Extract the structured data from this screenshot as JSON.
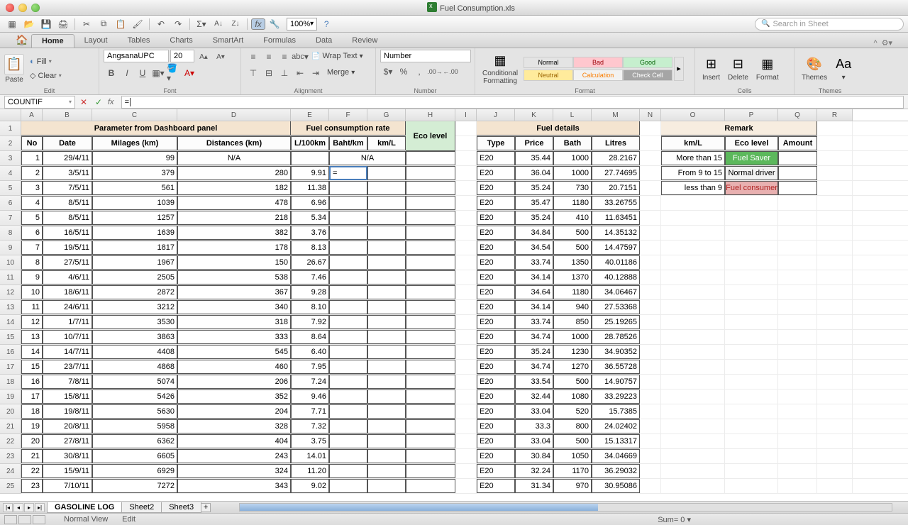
{
  "window": {
    "title": "Fuel Consumption.xls"
  },
  "toolbar": {
    "zoom": "100%",
    "search_placeholder": "Search in Sheet"
  },
  "ribbon": {
    "tabs": [
      "Home",
      "Layout",
      "Tables",
      "Charts",
      "SmartArt",
      "Formulas",
      "Data",
      "Review"
    ],
    "active_tab": "Home",
    "groups": {
      "edit": "Edit",
      "font": "Font",
      "alignment": "Alignment",
      "number": "Number",
      "format": "Format",
      "cells": "Cells",
      "themes": "Themes"
    },
    "paste_label": "Paste",
    "fill_label": "Fill",
    "clear_label": "Clear",
    "font_name": "AngsanaUPC",
    "font_size": "20",
    "wrap_label": "Wrap Text",
    "merge_label": "Merge",
    "number_format": "Number",
    "abc_label": "abc",
    "cond_format_label": "Conditional\nFormatting",
    "styles": {
      "normal": "Normal",
      "bad": "Bad",
      "good": "Good",
      "neutral": "Neutral",
      "calculation": "Calculation",
      "check": "Check Cell"
    },
    "insert_label": "Insert",
    "delete_label": "Delete",
    "format_label": "Format",
    "themes_label": "Themes",
    "aa_label": "Aa"
  },
  "formula_bar": {
    "name_box": "COUNTIF",
    "formula": "="
  },
  "columns": {
    "letters": [
      "A",
      "B",
      "C",
      "D",
      "E",
      "F",
      "G",
      "H",
      "I",
      "J",
      "K",
      "L",
      "M",
      "N",
      "O",
      "P",
      "Q",
      "R"
    ],
    "widths": [
      30,
      70,
      120,
      160,
      54,
      54,
      54,
      70,
      30,
      54,
      54,
      54,
      68,
      30,
      90,
      75,
      55,
      50
    ]
  },
  "headers": {
    "param": "Parameter from Dashboard panel",
    "fuel_rate": "Fuel consumption rate",
    "eco_level": "Eco level",
    "fuel_details": "Fuel details",
    "remark": "Remark",
    "sub": {
      "no": "No",
      "date": "Date",
      "milages": "Milages (km)",
      "distances": "Distances (km)",
      "l100": "L/100km",
      "baht": "Baht/km",
      "kml": "km/L",
      "type": "Type",
      "price": "Price",
      "bath": "Bath",
      "litres": "Litres",
      "r_kml": "km/L",
      "r_eco": "Eco level",
      "r_amt": "Amount"
    }
  },
  "remark_rows": [
    {
      "kml": "More than 15",
      "eco": "Fuel Saver",
      "cls": "fuel-saver"
    },
    {
      "kml": "From 9 to 15",
      "eco": "Normal driver",
      "cls": "normal-driver"
    },
    {
      "kml": "less than 9",
      "eco": "Fuel consumer",
      "cls": "fuel-consumer"
    }
  ],
  "rows": [
    {
      "no": 1,
      "date": "29/4/11",
      "mil": 99,
      "dist": "N/A",
      "l100": "",
      "na": "N/A",
      "type": "E20",
      "price": "35.44",
      "bath": "1000",
      "lit": "28.2167"
    },
    {
      "no": 2,
      "date": "3/5/11",
      "mil": 379,
      "dist": 280,
      "l100": "9.91",
      "edit": "=",
      "type": "E20",
      "price": "36.04",
      "bath": "1000",
      "lit": "27.74695"
    },
    {
      "no": 3,
      "date": "7/5/11",
      "mil": 561,
      "dist": 182,
      "l100": "11.38",
      "type": "E20",
      "price": "35.24",
      "bath": "730",
      "lit": "20.7151"
    },
    {
      "no": 4,
      "date": "8/5/11",
      "mil": 1039,
      "dist": 478,
      "l100": "6.96",
      "type": "E20",
      "price": "35.47",
      "bath": "1180",
      "lit": "33.26755"
    },
    {
      "no": 5,
      "date": "8/5/11",
      "mil": 1257,
      "dist": 218,
      "l100": "5.34",
      "type": "E20",
      "price": "35.24",
      "bath": "410",
      "lit": "11.63451"
    },
    {
      "no": 6,
      "date": "16/5/11",
      "mil": 1639,
      "dist": 382,
      "l100": "3.76",
      "type": "E20",
      "price": "34.84",
      "bath": "500",
      "lit": "14.35132"
    },
    {
      "no": 7,
      "date": "19/5/11",
      "mil": 1817,
      "dist": 178,
      "l100": "8.13",
      "type": "E20",
      "price": "34.54",
      "bath": "500",
      "lit": "14.47597"
    },
    {
      "no": 8,
      "date": "27/5/11",
      "mil": 1967,
      "dist": 150,
      "l100": "26.67",
      "type": "E20",
      "price": "33.74",
      "bath": "1350",
      "lit": "40.01186"
    },
    {
      "no": 9,
      "date": "4/6/11",
      "mil": 2505,
      "dist": 538,
      "l100": "7.46",
      "type": "E20",
      "price": "34.14",
      "bath": "1370",
      "lit": "40.12888"
    },
    {
      "no": 10,
      "date": "18/6/11",
      "mil": 2872,
      "dist": 367,
      "l100": "9.28",
      "type": "E20",
      "price": "34.64",
      "bath": "1180",
      "lit": "34.06467"
    },
    {
      "no": 11,
      "date": "24/6/11",
      "mil": 3212,
      "dist": 340,
      "l100": "8.10",
      "type": "E20",
      "price": "34.14",
      "bath": "940",
      "lit": "27.53368"
    },
    {
      "no": 12,
      "date": "1/7/11",
      "mil": 3530,
      "dist": 318,
      "l100": "7.92",
      "type": "E20",
      "price": "33.74",
      "bath": "850",
      "lit": "25.19265"
    },
    {
      "no": 13,
      "date": "10/7/11",
      "mil": 3863,
      "dist": 333,
      "l100": "8.64",
      "type": "E20",
      "price": "34.74",
      "bath": "1000",
      "lit": "28.78526"
    },
    {
      "no": 14,
      "date": "14/7/11",
      "mil": 4408,
      "dist": 545,
      "l100": "6.40",
      "type": "E20",
      "price": "35.24",
      "bath": "1230",
      "lit": "34.90352"
    },
    {
      "no": 15,
      "date": "23/7/11",
      "mil": 4868,
      "dist": 460,
      "l100": "7.95",
      "type": "E20",
      "price": "34.74",
      "bath": "1270",
      "lit": "36.55728"
    },
    {
      "no": 16,
      "date": "7/8/11",
      "mil": 5074,
      "dist": 206,
      "l100": "7.24",
      "type": "E20",
      "price": "33.54",
      "bath": "500",
      "lit": "14.90757"
    },
    {
      "no": 17,
      "date": "15/8/11",
      "mil": 5426,
      "dist": 352,
      "l100": "9.46",
      "type": "E20",
      "price": "32.44",
      "bath": "1080",
      "lit": "33.29223"
    },
    {
      "no": 18,
      "date": "19/8/11",
      "mil": 5630,
      "dist": 204,
      "l100": "7.71",
      "type": "E20",
      "price": "33.04",
      "bath": "520",
      "lit": "15.7385"
    },
    {
      "no": 19,
      "date": "20/8/11",
      "mil": 5958,
      "dist": 328,
      "l100": "7.32",
      "type": "E20",
      "price": "33.3",
      "bath": "800",
      "lit": "24.02402"
    },
    {
      "no": 20,
      "date": "27/8/11",
      "mil": 6362,
      "dist": 404,
      "l100": "3.75",
      "type": "E20",
      "price": "33.04",
      "bath": "500",
      "lit": "15.13317"
    },
    {
      "no": 21,
      "date": "30/8/11",
      "mil": 6605,
      "dist": 243,
      "l100": "14.01",
      "type": "E20",
      "price": "30.84",
      "bath": "1050",
      "lit": "34.04669"
    },
    {
      "no": 22,
      "date": "15/9/11",
      "mil": 6929,
      "dist": 324,
      "l100": "11.20",
      "type": "E20",
      "price": "32.24",
      "bath": "1170",
      "lit": "36.29032"
    },
    {
      "no": 23,
      "date": "7/10/11",
      "mil": 7272,
      "dist": 343,
      "l100": "9.02",
      "type": "E20",
      "price": "31.34",
      "bath": "970",
      "lit": "30.95086"
    }
  ],
  "sheets": {
    "active": "GASOLINE LOG",
    "tabs": [
      "GASOLINE LOG",
      "Sheet2",
      "Sheet3"
    ]
  },
  "status": {
    "view": "Normal View",
    "mode": "Edit",
    "sum": "Sum= 0"
  }
}
